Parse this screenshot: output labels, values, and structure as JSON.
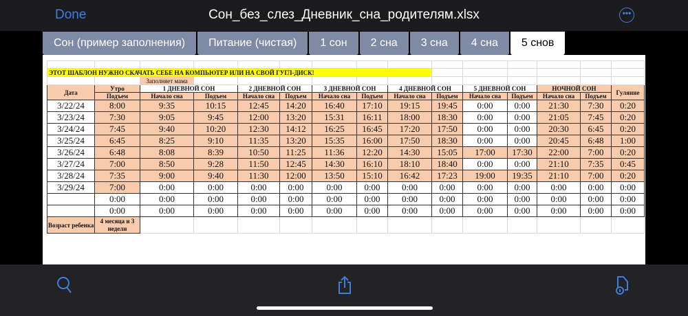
{
  "header": {
    "done_label": "Done",
    "title": "Сон_без_слез_Дневник_сна_родителям.xlsx",
    "more_icon": "ellipsis-circle-icon"
  },
  "tabs": [
    {
      "label": "Сон (пример заполнения)"
    },
    {
      "label": "Питание (чистая)"
    },
    {
      "label": "1 сон"
    },
    {
      "label": "2 сна"
    },
    {
      "label": "3 сна"
    },
    {
      "label": "4 сна"
    },
    {
      "label": "5 снов",
      "active": true
    }
  ],
  "colors": {
    "accent": "#3d7fe0",
    "tab": "#7f8aa5",
    "highlight": "#f8cbad",
    "banner": "#ffff00"
  },
  "sheet": {
    "banner": "ЭТОТ ШАБЛОН НУЖНО СКАЧАТЬ СЕБЕ НА КОМПЬЮТЕР ИЛИ НА СВОЙ ГУГЛ-ДИСК!",
    "note": "Заполняет мама",
    "headers": {
      "date": "Дата",
      "morning": "Утро",
      "nap1": "1 ДНЕВНОЙ СОН",
      "nap2": "2 ДНЕВНОЙ СОН",
      "nap3": "3 ДНЕВНОЙ СОН",
      "nap4": "4 ДНЕВНОЙ СОН",
      "nap5": "5 ДНЕВНОЙ СОН",
      "night": "НОЧНОЙ СОН",
      "walk": "Гуляние"
    },
    "subheaders": [
      "Подъем",
      "Начало сна",
      "Подъем",
      "Начало сна",
      "Подъем",
      "Начало сна",
      "Подъем",
      "Начало сна",
      "Подъем",
      "Начало сна",
      "Подъем",
      "Начало сна",
      "Подъем"
    ],
    "rows": [
      {
        "date": "3/22/24",
        "values": [
          "8:00",
          "9:35",
          "10:15",
          "12:45",
          "14:20",
          "16:40",
          "17:10",
          "19:15",
          "19:45",
          "0:00",
          "0:00",
          "21:30",
          "7:30",
          "0:20"
        ],
        "white": [
          9,
          10
        ]
      },
      {
        "date": "3/23/24",
        "values": [
          "7:30",
          "9:05",
          "9:45",
          "12:00",
          "13:20",
          "15:31",
          "16:11",
          "18:00",
          "18:30",
          "0:00",
          "0:00",
          "21:05",
          "7:45",
          "0:20"
        ],
        "white": [
          9,
          10
        ]
      },
      {
        "date": "3/24/24",
        "values": [
          "7:45",
          "9:40",
          "10:20",
          "12:30",
          "14:12",
          "16:25",
          "16:45",
          "17:20",
          "17:50",
          "0:00",
          "0:00",
          "20:30",
          "6:45",
          "0:20"
        ],
        "white": [
          9,
          10
        ]
      },
      {
        "date": "3/25/24",
        "values": [
          "6:45",
          "8:25",
          "9:10",
          "11:35",
          "13:20",
          "15:35",
          "16:00",
          "17:50",
          "18:30",
          "0:00",
          "0:00",
          "20:45",
          "6:48",
          "1:00"
        ],
        "white": [
          9,
          10
        ]
      },
      {
        "date": "3/26/24",
        "values": [
          "6:48",
          "8:08",
          "8:39",
          "10:50",
          "11:25",
          "11:36",
          "12:20",
          "14:30",
          "15:05",
          "17:00",
          "17:30",
          "22:00",
          "7:00",
          "0:20"
        ],
        "white": []
      },
      {
        "date": "3/27/24",
        "values": [
          "7:00",
          "8:50",
          "9:28",
          "11:50",
          "12:45",
          "14:30",
          "16:10",
          "18:10",
          "18:40",
          "0:00",
          "0:00",
          "21:10",
          "7:35",
          "0:45"
        ],
        "white": [
          9,
          10
        ]
      },
      {
        "date": "3/28/24",
        "values": [
          "7:35",
          "9:00",
          "9:40",
          "11:30",
          "12:00",
          "13:50",
          "15:10",
          "16:42",
          "17:23",
          "19:00",
          "19:35",
          "21:10",
          "7:00",
          "0:20"
        ],
        "white": []
      },
      {
        "date": "3/29/24",
        "values": [
          "7:00",
          "0:00",
          "0:00",
          "0:00",
          "0:00",
          "0:00",
          "0:00",
          "0:00",
          "0:00",
          "0:00",
          "0:00",
          "0:00",
          "0:00",
          "0:00"
        ],
        "white": [
          1,
          2,
          3,
          4,
          5,
          6,
          7,
          8,
          9,
          10,
          11,
          12,
          13
        ]
      },
      {
        "date": "",
        "values": [
          "0:00",
          "0:00",
          "0:00",
          "0:00",
          "0:00",
          "0:00",
          "0:00",
          "0:00",
          "0:00",
          "0:00",
          "0:00",
          "0:00",
          "0:00",
          "0:00"
        ],
        "white": [
          0,
          1,
          2,
          3,
          4,
          5,
          6,
          7,
          8,
          9,
          10,
          11,
          12,
          13
        ]
      },
      {
        "date": "",
        "values": [
          "0:00",
          "0:00",
          "0:00",
          "0:00",
          "0:00",
          "0:00",
          "0:00",
          "0:00",
          "0:00",
          "0:00",
          "0:00",
          "0:00",
          "0:00",
          "0:00"
        ],
        "white": [
          0,
          1,
          2,
          3,
          4,
          5,
          6,
          7,
          8,
          9,
          10,
          11,
          12,
          13
        ]
      }
    ],
    "age_label": "Возраст ребенка:",
    "age_value": "4 месяца и 3 недели"
  },
  "toolbar": {
    "search_icon": "search-icon",
    "share_icon": "share-icon",
    "markup_icon": "document-markup-icon"
  }
}
